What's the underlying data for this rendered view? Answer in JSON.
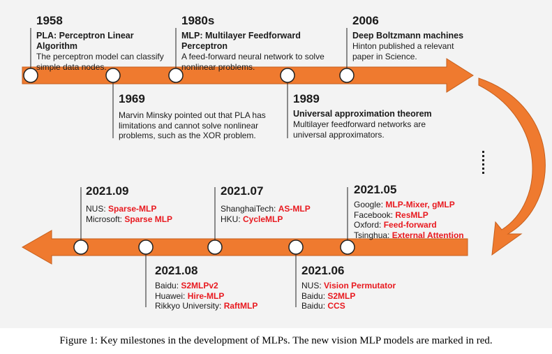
{
  "colors": {
    "arrow": "#ef7a2f",
    "arrow_stroke": "#c65f1c",
    "highlight": "#e8191f",
    "circle_stroke": "#222222"
  },
  "events_top": [
    {
      "year": "1958",
      "title": "PLA: Perceptron Linear Algorithm",
      "lines": [
        "The perceptron model can classify",
        "simple data nodes."
      ]
    },
    {
      "year": "1969",
      "title": "",
      "lines": [
        "Marvin Minsky pointed out that PLA has",
        "limitations and cannot solve nonlinear",
        "problems, such as the XOR problem."
      ]
    },
    {
      "year": "1980s",
      "title": "MLP: Multilayer Feedforward Perceptron",
      "lines": [
        "A feed-forward neural network to solve",
        "nonlinear problems."
      ]
    },
    {
      "year": "1989",
      "title": "Universal approximation theorem",
      "lines": [
        "Multilayer feedforward networks are",
        "universal approximators."
      ]
    },
    {
      "year": "2006",
      "title": "Deep Boltzmann machines",
      "lines": [
        "Hinton published a relevant",
        "paper in Science."
      ]
    }
  ],
  "events_bottom": [
    {
      "year": "2021.09",
      "entries": [
        {
          "org": "NUS: ",
          "models": [
            "Sparse-MLP"
          ]
        },
        {
          "org": "Microsoft: ",
          "models": [
            "Sparse MLP"
          ]
        }
      ]
    },
    {
      "year": "2021.08",
      "entries": [
        {
          "org": "Baidu: ",
          "models": [
            "S2MLPv2"
          ]
        },
        {
          "org": "Huawei: ",
          "models": [
            "Hire-MLP"
          ]
        },
        {
          "org": "Rikkyo University: ",
          "models": [
            "RaftMLP"
          ]
        }
      ]
    },
    {
      "year": "2021.07",
      "entries": [
        {
          "org": "ShanghaiTech: ",
          "models": [
            "AS-MLP"
          ]
        },
        {
          "org": "HKU: ",
          "models": [
            "CycleMLP"
          ]
        }
      ]
    },
    {
      "year": "2021.06",
      "entries": [
        {
          "org": "NUS: ",
          "models": [
            "Vision Permutator"
          ]
        },
        {
          "org": "Baidu: ",
          "models": [
            "S2MLP"
          ]
        },
        {
          "org": "Baidu: ",
          "models": [
            "CCS"
          ]
        }
      ]
    },
    {
      "year": "2021.05",
      "entries": [
        {
          "org": "Google: ",
          "models": [
            "MLP-Mixer",
            "gMLP"
          ]
        },
        {
          "org": "Facebook: ",
          "models": [
            "ResMLP"
          ]
        },
        {
          "org": "Oxford: ",
          "models": [
            "Feed-forward"
          ]
        },
        {
          "org": "Tsinghua: ",
          "models": [
            "External Attention"
          ]
        }
      ]
    }
  ],
  "caption": "Figure 1:  Key milestones in the development of MLPs. The new vision MLP models are marked in red."
}
